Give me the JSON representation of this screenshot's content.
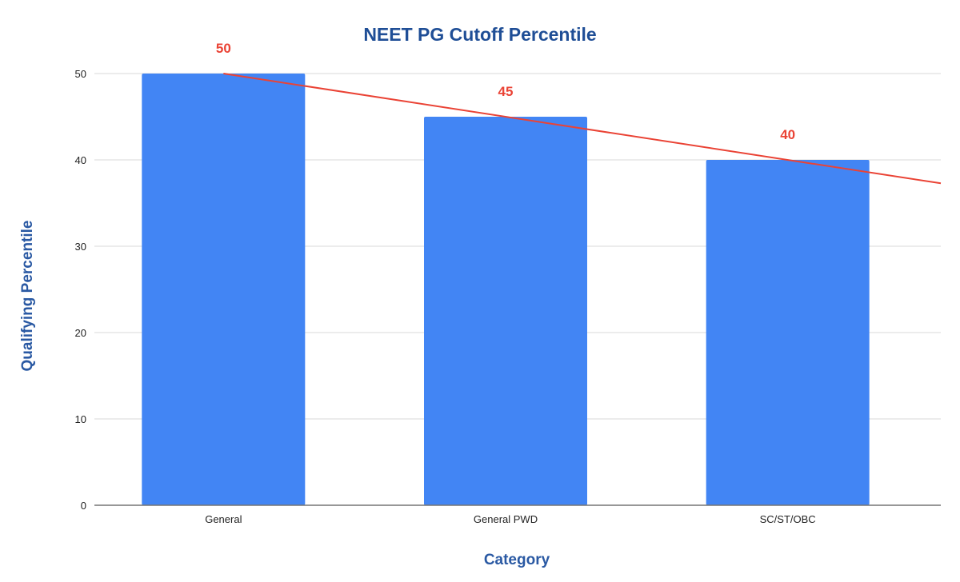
{
  "chart_data": {
    "type": "bar",
    "title": "NEET PG Cutoff Percentile",
    "xlabel": "Category",
    "ylabel": "Qualifying Percentile",
    "categories": [
      "General",
      "General PWD",
      "SC/ST/OBC"
    ],
    "values": [
      50,
      45,
      40
    ],
    "data_labels": [
      "50",
      "45",
      "40"
    ],
    "series": [
      {
        "name": "Qualifying Percentile",
        "values": [
          50,
          45,
          40
        ],
        "color": "#4285f4"
      }
    ],
    "trendline": {
      "type": "linear",
      "color": "#ea4335"
    },
    "yticks": [
      "0",
      "10",
      "20",
      "30",
      "40",
      "50"
    ],
    "ylim": [
      0,
      50
    ],
    "grid": true,
    "legend": "none"
  },
  "colors": {
    "bar": "#4285f4",
    "trendline": "#ea4335",
    "data_label": "#ea4335",
    "title": "#1f4e96",
    "axis_title": "#2a59a3",
    "grid": "#e0e0e0",
    "axis": "#757575"
  }
}
